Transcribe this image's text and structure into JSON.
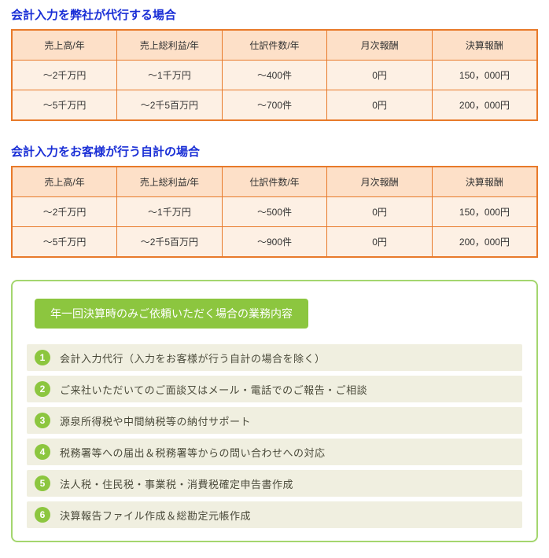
{
  "colors": {
    "tableBorder": "#e87a2a",
    "headerBg": "#fde0c8",
    "rowBg": "#fdf0e4"
  },
  "section1": {
    "heading": "会計入力を弊社が代行する場合",
    "columns": [
      "売上高/年",
      "売上総利益/年",
      "仕訳件数/年",
      "月次報酬",
      "決算報酬"
    ],
    "rows": [
      [
        "～2千万円",
        "～1千万円",
        "～400件",
        "0円",
        "150，000円"
      ],
      [
        "～5千万円",
        "～2千5百万円",
        "～700件",
        "0円",
        "200，000円"
      ]
    ]
  },
  "section2": {
    "heading": "会計入力をお客様が行う自計の場合",
    "columns": [
      "売上高/年",
      "売上総利益/年",
      "仕訳件数/年",
      "月次報酬",
      "決算報酬"
    ],
    "rows": [
      [
        "～2千万円",
        "～1千万円",
        "～500件",
        "0円",
        "150，000円"
      ],
      [
        "～5千万円",
        "～2千5百万円",
        "～900件",
        "0円",
        "200，000円"
      ]
    ]
  },
  "box": {
    "title": "年一回決算時のみご依頼いただく場合の業務内容",
    "items": [
      "会計入力代行（入力をお客様が行う自計の場合を除く）",
      "ご来社いただいてのご面談又はメール・電話でのご報告・ご相談",
      "源泉所得税や中間納税等の納付サポート",
      "税務署等への届出＆税務署等からの問い合わせへの対応",
      "法人税・住民税・事業税・消費税確定申告書作成",
      "決算報告ファイル作成＆総勘定元帳作成"
    ]
  }
}
